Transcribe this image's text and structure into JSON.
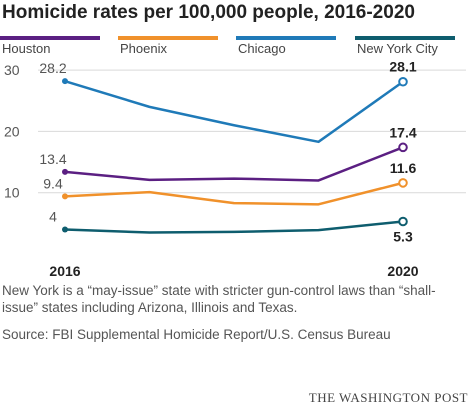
{
  "chart_data": {
    "type": "line",
    "title": "Homicide rates per 100,000 people, 2016-2020",
    "x": [
      2016,
      2017,
      2018,
      2019,
      2020
    ],
    "x_tick_labels": [
      "2016",
      "2020"
    ],
    "y_ticks": [
      "10",
      "20",
      "30"
    ],
    "ylim": [
      0,
      30
    ],
    "grid": "horizontal",
    "legend_position": "top",
    "series": [
      {
        "name": "Houston",
        "color": "#5b1f82",
        "values": [
          13.4,
          12.1,
          12.3,
          12.0,
          17.4
        ],
        "start_label": "13.4",
        "end_label": "17.4"
      },
      {
        "name": "Phoenix",
        "color": "#f0912b",
        "values": [
          9.4,
          10.1,
          8.3,
          8.1,
          11.6
        ],
        "start_label": "9.4",
        "end_label": "11.6"
      },
      {
        "name": "Chicago",
        "color": "#1f7ab8",
        "values": [
          28.2,
          24.0,
          21.0,
          18.3,
          28.1
        ],
        "start_label": "28.2",
        "end_label": "28.1"
      },
      {
        "name": "New York City",
        "color": "#0e5d6e",
        "values": [
          4.0,
          3.5,
          3.6,
          3.9,
          5.3
        ],
        "start_label": "4",
        "end_label": "5.3"
      }
    ]
  },
  "footnote": "New York is a “may-issue” state with stricter gun-control laws than “shall-issue” states including Arizona, Illinois and Texas.",
  "source": "Source: FBI Supplemental Homicide Report/U.S. Census Bureau",
  "credit": "THE WASHINGTON POST"
}
